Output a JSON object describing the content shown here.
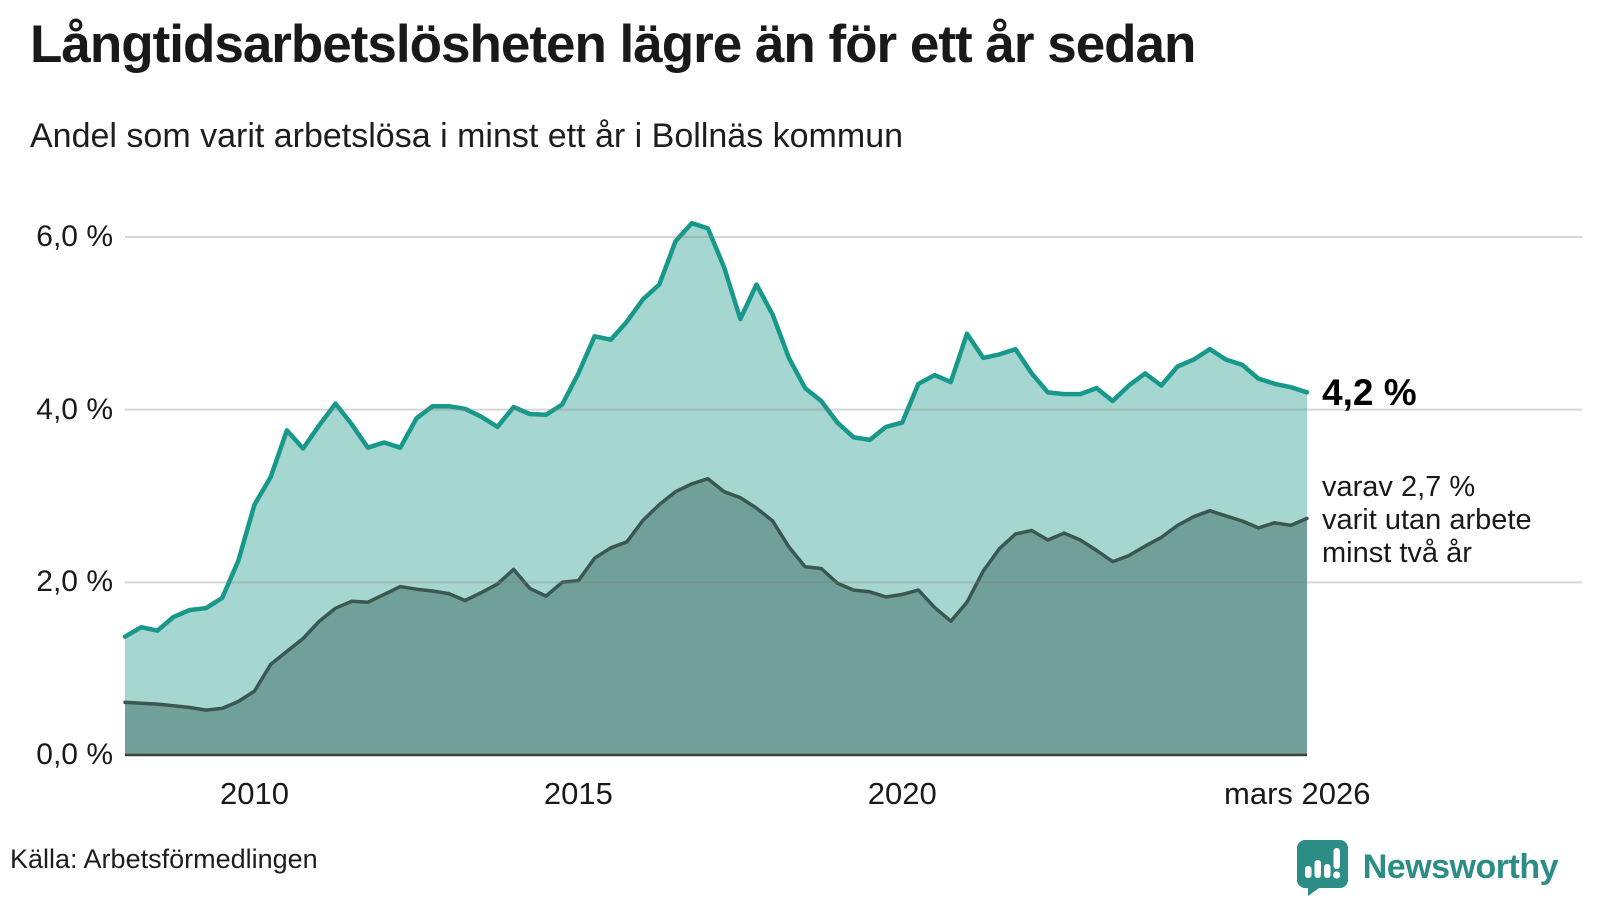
{
  "header": {
    "title": "Långtidsarbetslösheten lägre än för ett år sedan",
    "subtitle": "Andel som varit arbetslösa i minst ett år i Bollnäs kommun"
  },
  "chart_data": {
    "type": "area",
    "title": "Långtidsarbetslösheten lägre än för ett år sedan",
    "subtitle": "Andel som varit arbetslösa i minst ett år i Bollnäs kommun",
    "unit": "%",
    "x_start": 2008.0,
    "x_end": 2026.25,
    "x_step": 0.25,
    "x": [
      2008.0,
      2008.25,
      2008.5,
      2008.75,
      2009.0,
      2009.25,
      2009.5,
      2009.75,
      2010.0,
      2010.25,
      2010.5,
      2010.75,
      2011.0,
      2011.25,
      2011.5,
      2011.75,
      2012.0,
      2012.25,
      2012.5,
      2012.75,
      2013.0,
      2013.25,
      2013.5,
      2013.75,
      2014.0,
      2014.25,
      2014.5,
      2014.75,
      2015.0,
      2015.25,
      2015.5,
      2015.75,
      2016.0,
      2016.25,
      2016.5,
      2016.75,
      2017.0,
      2017.25,
      2017.5,
      2017.75,
      2018.0,
      2018.25,
      2018.5,
      2018.75,
      2019.0,
      2019.25,
      2019.5,
      2019.75,
      2020.0,
      2020.25,
      2020.5,
      2020.75,
      2021.0,
      2021.25,
      2021.5,
      2021.75,
      2022.0,
      2022.25,
      2022.5,
      2022.75,
      2023.0,
      2023.25,
      2023.5,
      2023.75,
      2024.0,
      2024.25,
      2024.5,
      2024.75,
      2025.0,
      2025.25,
      2025.5,
      2025.75,
      2026.0,
      2026.25
    ],
    "series": [
      {
        "name": "Andel som varit arbetslösa i minst ett år",
        "line_color": "#17988b",
        "fill_color": "#a5d6cf",
        "line_width": 4.5,
        "last_value": "4,2 %",
        "values": [
          1.37,
          1.48,
          1.44,
          1.6,
          1.68,
          1.7,
          1.82,
          2.25,
          2.9,
          3.22,
          3.76,
          3.55,
          3.82,
          4.07,
          3.83,
          3.56,
          3.62,
          3.56,
          3.9,
          4.04,
          4.04,
          4.01,
          3.92,
          3.8,
          4.03,
          3.95,
          3.94,
          4.06,
          4.42,
          4.85,
          4.81,
          5.02,
          5.28,
          5.45,
          5.95,
          6.16,
          6.1,
          5.65,
          5.05,
          5.45,
          5.1,
          4.6,
          4.25,
          4.1,
          3.85,
          3.68,
          3.65,
          3.8,
          3.85,
          4.3,
          4.4,
          4.32,
          4.88,
          4.6,
          4.64,
          4.7,
          4.42,
          4.2,
          4.18,
          4.18,
          4.25,
          4.1,
          4.28,
          4.42,
          4.28,
          4.5,
          4.58,
          4.7,
          4.58,
          4.52,
          4.36,
          4.3,
          4.26,
          4.2
        ]
      },
      {
        "name": "varav utan arbete minst två år",
        "line_color": "#3b5751",
        "fill_color": "#70a099",
        "line_width": 3.5,
        "last_value": "2,7 %",
        "values": [
          0.61,
          0.6,
          0.59,
          0.57,
          0.55,
          0.52,
          0.54,
          0.62,
          0.74,
          1.05,
          1.2,
          1.35,
          1.55,
          1.7,
          1.78,
          1.77,
          1.86,
          1.95,
          1.92,
          1.9,
          1.87,
          1.79,
          1.88,
          1.98,
          2.15,
          1.93,
          1.84,
          2.0,
          2.02,
          2.28,
          2.4,
          2.47,
          2.72,
          2.9,
          3.05,
          3.14,
          3.2,
          3.05,
          2.98,
          2.86,
          2.71,
          2.41,
          2.18,
          2.16,
          1.99,
          1.91,
          1.89,
          1.83,
          1.86,
          1.91,
          1.71,
          1.55,
          1.77,
          2.13,
          2.39,
          2.56,
          2.6,
          2.49,
          2.57,
          2.49,
          2.37,
          2.24,
          2.31,
          2.42,
          2.52,
          2.66,
          2.76,
          2.83,
          2.77,
          2.71,
          2.63,
          2.69,
          2.66,
          2.74
        ]
      }
    ],
    "ylim": [
      0,
      6.6
    ],
    "yticks": [
      {
        "value": 6,
        "label": "6,0 %"
      },
      {
        "value": 4,
        "label": "4,0 %"
      },
      {
        "value": 2,
        "label": "2,0 %"
      },
      {
        "value": 0,
        "label": "0,0 %"
      }
    ],
    "xticks": [
      {
        "value": 2010,
        "label": "2010"
      },
      {
        "value": 2015,
        "label": "2015"
      },
      {
        "value": 2020,
        "label": "2020"
      },
      {
        "value": 2026.1,
        "label": "mars 2026"
      }
    ],
    "grid": "horizontal",
    "gridline_color": "#808080",
    "baseline_color": "#39423f",
    "legend_position": "right-annotations",
    "annotations": {
      "value_label": "4,2 %",
      "note_lines": [
        "varav 2,7 %",
        "varit utan arbete",
        "minst två år"
      ]
    }
  },
  "footer": {
    "source": "Källa: Arbetsförmedlingen",
    "brand": "Newsworthy",
    "brand_color": "#2b8d85"
  }
}
